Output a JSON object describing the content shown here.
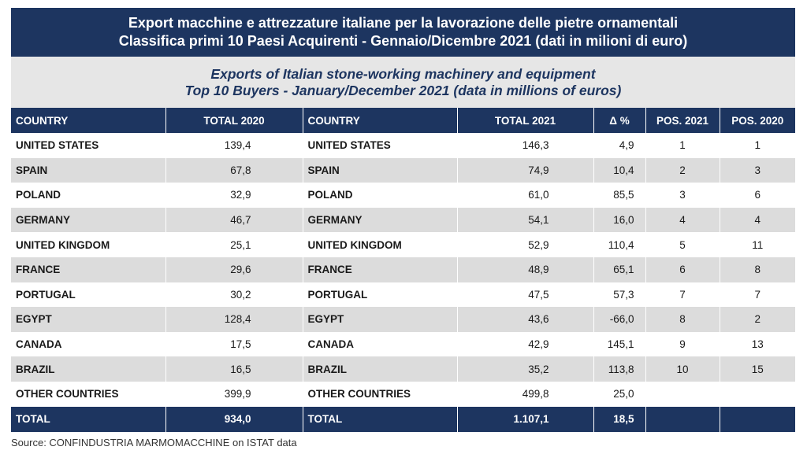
{
  "title_it": {
    "line1": "Export macchine e attrezzature italiane per la lavorazione delle pietre ornamentali",
    "line2": "Classifica primi 10 Paesi Acquirenti - Gennaio/Dicembre 2021 (dati in milioni di euro)"
  },
  "title_en": {
    "line1": "Exports of Italian stone-working machinery and equipment",
    "line2": "Top 10 Buyers - January/December 2021 (data in millions of euros)"
  },
  "headers": [
    "COUNTRY",
    "TOTAL 2020",
    "COUNTRY",
    "TOTAL 2021",
    "Δ %",
    "POS. 2021",
    "POS. 2020"
  ],
  "rows": [
    [
      "UNITED STATES",
      "139,4",
      "UNITED STATES",
      "146,3",
      "4,9",
      "1",
      "1"
    ],
    [
      "SPAIN",
      "67,8",
      "SPAIN",
      "74,9",
      "10,4",
      "2",
      "3"
    ],
    [
      "POLAND",
      "32,9",
      "POLAND",
      "61,0",
      "85,5",
      "3",
      "6"
    ],
    [
      "GERMANY",
      "46,7",
      "GERMANY",
      "54,1",
      "16,0",
      "4",
      "4"
    ],
    [
      "UNITED KINGDOM",
      "25,1",
      "UNITED KINGDOM",
      "52,9",
      "110,4",
      "5",
      "11"
    ],
    [
      "FRANCE",
      "29,6",
      "FRANCE",
      "48,9",
      "65,1",
      "6",
      "8"
    ],
    [
      "PORTUGAL",
      "30,2",
      "PORTUGAL",
      "47,5",
      "57,3",
      "7",
      "7"
    ],
    [
      "EGYPT",
      "128,4",
      "EGYPT",
      "43,6",
      "-66,0",
      "8",
      "2"
    ],
    [
      "CANADA",
      "17,5",
      "CANADA",
      "42,9",
      "145,1",
      "9",
      "13"
    ],
    [
      "BRAZIL",
      "16,5",
      "BRAZIL",
      "35,2",
      "113,8",
      "10",
      "15"
    ],
    [
      "OTHER COUNTRIES",
      "399,9",
      "OTHER COUNTRIES",
      "499,8",
      "25,0",
      "",
      ""
    ]
  ],
  "total": [
    "TOTAL",
    "934,0",
    "TOTAL",
    "1.107,1",
    "18,5",
    "",
    ""
  ],
  "source": "Source: CONFINDUSTRIA MARMOMACCHINE on ISTAT data",
  "colors": {
    "header_bg": "#1d3560",
    "stripe_bg": "#dcdcdc",
    "subtitle_bg": "#e6e6e6"
  }
}
